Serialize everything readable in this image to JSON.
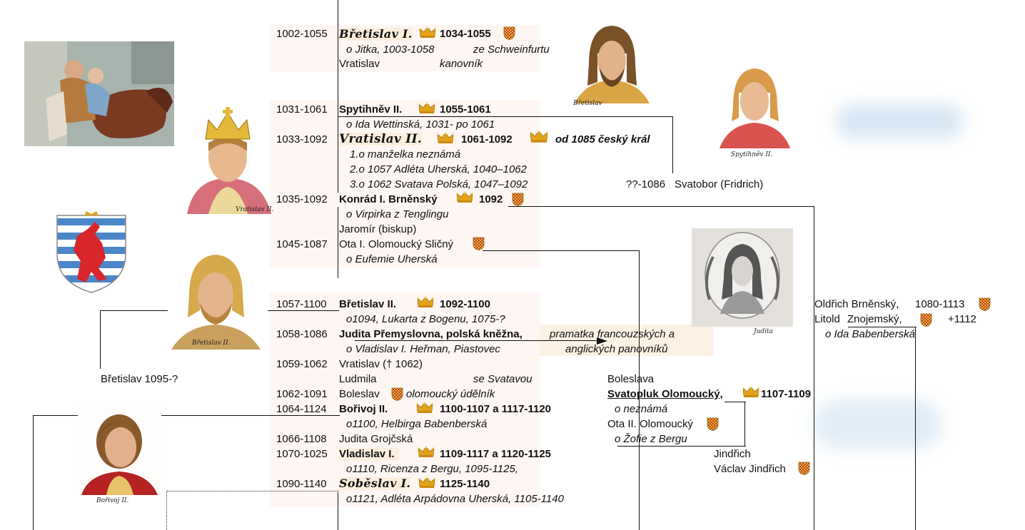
{
  "people": [
    {
      "id": "bretislav1",
      "years": "1002-1055",
      "name": "Břetislav I.",
      "reign": "1034-1055"
    },
    {
      "id": "bretislav1_wife",
      "text": "o Jitka, 1003-1058",
      "origin": "ze Schweinfurtu"
    },
    {
      "id": "vratislav_k",
      "name": "Vratislav",
      "note": "kanovník"
    },
    {
      "id": "spytihnev",
      "years": "1031-1061",
      "name": "Spytihněv II.",
      "reign": "1055-1061"
    },
    {
      "id": "spytihnev_wife",
      "text": "o Ida Wettinská, 1031- po 1061"
    },
    {
      "id": "vratislav2",
      "years": "1033-1092",
      "name": "Vratislav II.",
      "reign": "1061-1092",
      "note": "od 1085 český král"
    },
    {
      "id": "vratislav2_w1",
      "text": "1.o manželka neznámá"
    },
    {
      "id": "vratislav2_w2",
      "text": "2.o 1057 Adléta Uherská, 1040–1062"
    },
    {
      "id": "vratislav2_w3",
      "text": "3.o 1062 Svatava Polská, 1047–1092"
    },
    {
      "id": "konrad",
      "years": "1035-1092",
      "name": "Konrád I. Brněnský",
      "reign": "1092"
    },
    {
      "id": "konrad_wife",
      "text": "o Virpirka z Tenglingu"
    },
    {
      "id": "jaromir",
      "text": "Jaromír (biskup)"
    },
    {
      "id": "ota1",
      "years": "1045-1087",
      "name": "Ota I. Olomoucký Sličný"
    },
    {
      "id": "ota1_wife",
      "text": "o Eufemie Uherská"
    },
    {
      "id": "bretislav2",
      "years": "1057-1100",
      "name": "Břetislav II.",
      "reign": "1092-1100"
    },
    {
      "id": "bretislav2_wife",
      "text": "o1094, Lukarta z Bogenu, 1075-?"
    },
    {
      "id": "judita",
      "years": "1058-1086",
      "name": "Judita Přemyslovna, polská kněžna,",
      "note1": "pramatka francouzských a",
      "note2": "anglických panovníků"
    },
    {
      "id": "judita_husband",
      "text": "o Vladislav I. Heřman, Piastovec"
    },
    {
      "id": "vratislav_d",
      "years": "1059-1062",
      "text": "Vratislav († 1062)"
    },
    {
      "id": "ludmila",
      "name": "Ludmila",
      "note": "se Svatavou"
    },
    {
      "id": "boleslav",
      "years": "1062-1091",
      "name": "Boleslav",
      "note": "olomoucký údělník"
    },
    {
      "id": "borivoj",
      "years": "1064-1124",
      "name": "Bořivoj II.",
      "reign": "1100-1107 a 1117-1120"
    },
    {
      "id": "borivoj_wife",
      "text": "o1100, Helbirga Babenberská"
    },
    {
      "id": "judita_g",
      "years": "1066-1108",
      "text": "Judita Grojčská"
    },
    {
      "id": "vladislav1",
      "years": "1070-1025",
      "name": "Vladislav I.",
      "reign": "1109-1117 a 1120-1125"
    },
    {
      "id": "vladislav1_wife",
      "text": "o1110, Ricenza z Bergu, 1095-1125,"
    },
    {
      "id": "sobeslav",
      "years": "1090-1140",
      "name": "Soběslav I.",
      "reign": "1125-1140"
    },
    {
      "id": "sobeslav_wife",
      "text": "o1121, Adléta Arpádovna Uherská, 1105-1140"
    },
    {
      "id": "svatobor",
      "years": "??-1086",
      "text": "Svatobor (Fridrich)"
    },
    {
      "id": "bretislav_y",
      "text": "Břetislav 1095-?"
    },
    {
      "id": "boleslava",
      "text": "Boleslava"
    },
    {
      "id": "svatopluk",
      "name": "Svatopluk Olomoucký,",
      "reign": "1107-1109"
    },
    {
      "id": "svatopluk_wife",
      "text": "o neznámá"
    },
    {
      "id": "ota2",
      "text": "Ota II. Olomoucký"
    },
    {
      "id": "ota2_wife",
      "text": "o Žofie z Bergu"
    },
    {
      "id": "jindrich",
      "text": "Jindřich"
    },
    {
      "id": "vaclav_j",
      "text": "Václav Jindřich"
    },
    {
      "id": "oldrich",
      "text": "Oldřich Brněnský,",
      "years": "1080-1113"
    },
    {
      "id": "litold",
      "text": "Litold",
      "name2": "Znojemský,",
      "death": "+1112"
    },
    {
      "id": "litold_wife",
      "text": "o Ida Babenberská"
    }
  ],
  "captions": {
    "bretislav1": "Břetislav",
    "spytihnev": "Spytihněv II.",
    "vratislav2": "Vratislav II.",
    "bretislav2": "Břetislav II.",
    "judita": "Judita",
    "borivoj": "Bořivoj II."
  },
  "colors": {
    "crown": "#e2a31a",
    "shield_red": "#c0392b",
    "shield_gold": "#e9b72e",
    "highlight": "#fbeedd",
    "luxembourg_blue": "#4a86c8",
    "luxembourg_red": "#d8262b"
  },
  "icons": [
    "crown-icon",
    "moravian-eagle-shield-icon",
    "luxembourg-lion-coat-of-arms"
  ]
}
